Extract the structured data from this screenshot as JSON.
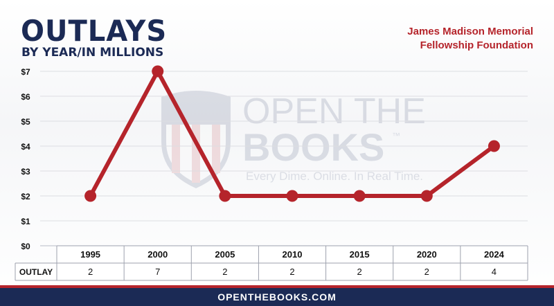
{
  "title": "OUTLAYS",
  "subtitle": "BY YEAR/IN MILLIONS",
  "org_line1": "James Madison Memorial",
  "org_line2": "Fellowship Foundation",
  "watermark": {
    "line1": "OPEN THE",
    "line2": "BOOKS",
    "trademark": "™",
    "tagline": "Every Dime. Online. In Real Time."
  },
  "footer": "OPENTHEBOOKS.COM",
  "colors": {
    "navy": "#1b2a55",
    "red": "#b5242b"
  },
  "chart_data": {
    "type": "line",
    "categories": [
      "1995",
      "2000",
      "2005",
      "2010",
      "2015",
      "2020",
      "2024"
    ],
    "values": [
      2,
      7,
      2,
      2,
      2,
      2,
      4
    ],
    "y_ticks": [
      "$0",
      "$1",
      "$2",
      "$3",
      "$4",
      "$5",
      "$6",
      "$7"
    ],
    "ylim": [
      0,
      7
    ],
    "table_row_label": "OUTLAY",
    "table_values": [
      "2",
      "7",
      "2",
      "2",
      "2",
      "2",
      "4"
    ],
    "grid": true
  }
}
